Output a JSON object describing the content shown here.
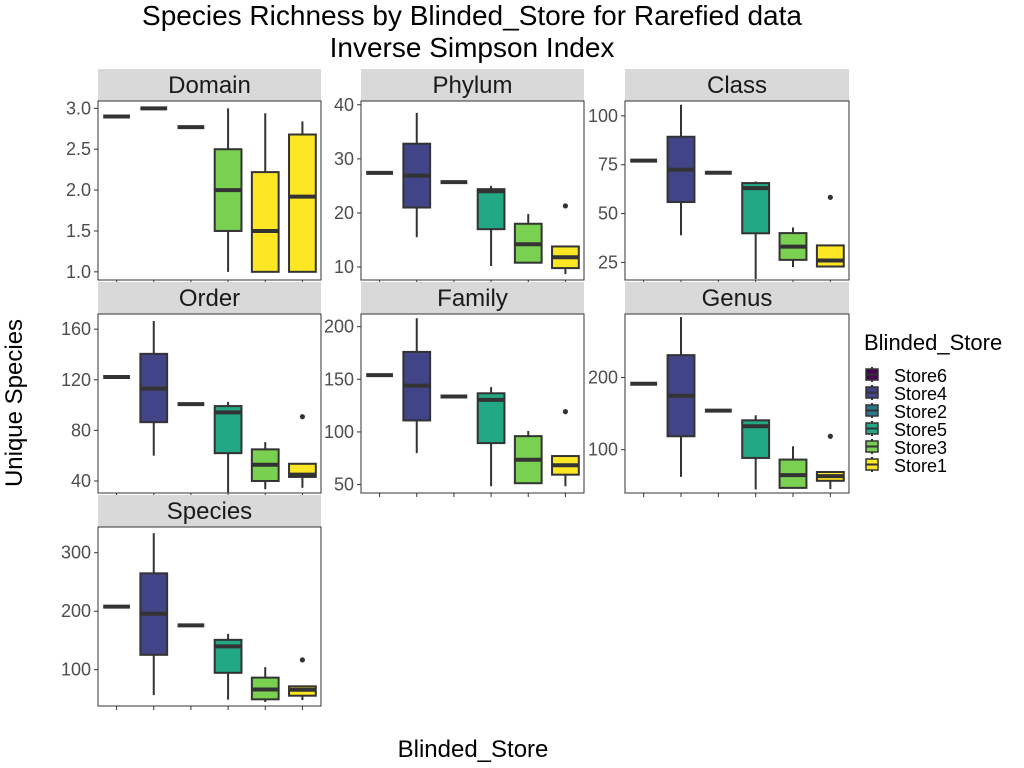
{
  "chart_data": {
    "type": "boxplot",
    "title": "Species Richness by Blinded_Store for Rarefied data",
    "subtitle": "Inverse Simpson Index",
    "xlabel": "Blinded_Store",
    "ylabel": "Unique Species",
    "legend_title": "Blinded_Store",
    "legend_position": "right",
    "grid": false,
    "categories": [
      "Store6",
      "Store4",
      "Store2",
      "Store5",
      "Store3",
      "Store1"
    ],
    "colors": {
      "Store6": "#440154",
      "Store4": "#414487",
      "Store2": "#2A788E",
      "Store5": "#22A884",
      "Store3": "#7AD151",
      "Store1": "#FDE725"
    },
    "facets": [
      {
        "label": "Domain",
        "ylim": [
          0.9,
          3.09
        ],
        "yticks": [
          1.0,
          1.5,
          2.0,
          2.5,
          3.0
        ],
        "ytick_labels": [
          "1.0",
          "1.5",
          "2.0",
          "2.5",
          "3.0"
        ],
        "boxes": [
          {
            "store": "Store4",
            "min": 2.9,
            "q1": 2.9,
            "median": 2.9,
            "q3": 2.9,
            "max": 2.9,
            "outliers": []
          },
          {
            "store": "Store2",
            "min": 3.0,
            "q1": 3.0,
            "median": 3.0,
            "q3": 3.0,
            "max": 3.0,
            "outliers": []
          },
          {
            "store": "Store5",
            "min": 2.77,
            "q1": 2.77,
            "median": 2.77,
            "q3": 2.77,
            "max": 2.77,
            "outliers": []
          },
          {
            "store": "Store3",
            "min": 1.0,
            "q1": 1.5,
            "median": 2.0,
            "q3": 2.5,
            "max": 3.0,
            "outliers": []
          },
          {
            "store": "Store1",
            "min": 1.0,
            "q1": 1.0,
            "median": 1.5,
            "q3": 2.22,
            "max": 2.94,
            "outliers": []
          },
          {
            "store": "Store1",
            "min": 1.0,
            "q1": 1.0,
            "median": 1.92,
            "q3": 2.68,
            "max": 2.84,
            "outliers": []
          }
        ]
      },
      {
        "label": "Phylum",
        "ylim": [
          7.6,
          40.7
        ],
        "yticks": [
          10,
          20,
          30,
          40
        ],
        "ytick_labels": [
          "10",
          "20",
          "30",
          "40"
        ],
        "boxes": [
          {
            "store": "Store4",
            "min": 27.4,
            "q1": 27.4,
            "median": 27.4,
            "q3": 27.4,
            "max": 27.4,
            "outliers": []
          },
          {
            "store": "Store4",
            "min": 15.5,
            "q1": 21.0,
            "median": 26.9,
            "q3": 32.8,
            "max": 38.5,
            "outliers": []
          },
          {
            "store": "Store5",
            "min": 25.7,
            "q1": 25.7,
            "median": 25.7,
            "q3": 25.7,
            "max": 25.7,
            "outliers": []
          },
          {
            "store": "Store5",
            "min": 10.2,
            "q1": 17.0,
            "median": 24.0,
            "q3": 24.4,
            "max": 25.0,
            "outliers": []
          },
          {
            "store": "Store3",
            "min": 10.8,
            "q1": 10.8,
            "median": 14.2,
            "q3": 18.0,
            "max": 19.8,
            "outliers": []
          },
          {
            "store": "Store1",
            "min": 8.7,
            "q1": 9.8,
            "median": 11.8,
            "q3": 13.8,
            "max": 13.8,
            "outliers": [
              21.3
            ]
          }
        ]
      },
      {
        "label": "Class",
        "ylim": [
          16,
          107.6
        ],
        "yticks": [
          25,
          50,
          75,
          100
        ],
        "ytick_labels": [
          "25",
          "50",
          "75",
          "100"
        ],
        "boxes": [
          {
            "store": "Store3",
            "min": 77.1,
            "q1": 77.1,
            "median": 77.1,
            "q3": 77.1,
            "max": 77.1,
            "outliers": []
          },
          {
            "store": "Store4",
            "min": 38.9,
            "q1": 55.9,
            "median": 72.5,
            "q3": 89.3,
            "max": 105.7,
            "outliers": []
          },
          {
            "store": "Store5",
            "min": 70.9,
            "q1": 70.9,
            "median": 70.9,
            "q3": 70.9,
            "max": 70.9,
            "outliers": []
          },
          {
            "store": "Store5",
            "min": 16.5,
            "q1": 39.9,
            "median": 63.0,
            "q3": 65.6,
            "max": 66.4,
            "outliers": []
          },
          {
            "store": "Store3",
            "min": 22.6,
            "q1": 26.3,
            "median": 33.1,
            "q3": 40.0,
            "max": 42.9,
            "outliers": []
          },
          {
            "store": "Store1",
            "min": 22.6,
            "q1": 22.9,
            "median": 26.0,
            "q3": 33.7,
            "max": 33.7,
            "outliers": [
              58.3
            ]
          }
        ]
      },
      {
        "label": "Order",
        "ylim": [
          30.5,
          172
        ],
        "yticks": [
          40,
          80,
          120,
          160
        ],
        "ytick_labels": [
          "40",
          "80",
          "120",
          "160"
        ],
        "boxes": [
          {
            "store": "Store2",
            "min": 122.2,
            "q1": 122.2,
            "median": 122.2,
            "q3": 122.2,
            "max": 122.2,
            "outliers": []
          },
          {
            "store": "Store4",
            "min": 60.0,
            "q1": 86.5,
            "median": 113.0,
            "q3": 140.5,
            "max": 166.5,
            "outliers": []
          },
          {
            "store": "Store2",
            "min": 100.8,
            "q1": 100.8,
            "median": 100.8,
            "q3": 100.8,
            "max": 100.8,
            "outliers": []
          },
          {
            "store": "Store5",
            "min": 31.0,
            "q1": 62.0,
            "median": 94.2,
            "q3": 99.2,
            "max": 102.5,
            "outliers": []
          },
          {
            "store": "Store3",
            "min": 33.5,
            "q1": 40.0,
            "median": 52.8,
            "q3": 65.0,
            "max": 70.7,
            "outliers": []
          },
          {
            "store": "Store1",
            "min": 34.6,
            "q1": 43.2,
            "median": 45.0,
            "q3": 53.6,
            "max": 53.6,
            "outliers": [
              90.8
            ]
          }
        ]
      },
      {
        "label": "Family",
        "ylim": [
          42,
          212
        ],
        "yticks": [
          50,
          100,
          150,
          200
        ],
        "ytick_labels": [
          "50",
          "100",
          "150",
          "200"
        ],
        "boxes": [
          {
            "store": "Store2",
            "min": 153.9,
            "q1": 153.9,
            "median": 153.9,
            "q3": 153.9,
            "max": 153.9,
            "outliers": []
          },
          {
            "store": "Store4",
            "min": 79.9,
            "q1": 110.9,
            "median": 144.0,
            "q3": 176.0,
            "max": 208.0,
            "outliers": []
          },
          {
            "store": "Store2",
            "min": 133.7,
            "q1": 133.7,
            "median": 133.7,
            "q3": 133.7,
            "max": 133.7,
            "outliers": []
          },
          {
            "store": "Store5",
            "min": 48.4,
            "q1": 89.4,
            "median": 130.4,
            "q3": 136.7,
            "max": 142.5,
            "outliers": []
          },
          {
            "store": "Store3",
            "min": 51.3,
            "q1": 51.3,
            "median": 73.6,
            "q3": 96.0,
            "max": 100.9,
            "outliers": []
          },
          {
            "store": "Store1",
            "min": 48.4,
            "q1": 59.4,
            "median": 68.3,
            "q3": 77.1,
            "max": 77.1,
            "outliers": [
              119.3
            ]
          }
        ]
      },
      {
        "label": "Genus",
        "ylim": [
          40,
          288
        ],
        "yticks": [
          100,
          200
        ],
        "ytick_labels": [
          "100",
          "200"
        ],
        "boxes": [
          {
            "store": "Store2",
            "min": 191.4,
            "q1": 191.4,
            "median": 191.4,
            "q3": 191.4,
            "max": 191.4,
            "outliers": []
          },
          {
            "store": "Store4",
            "min": 62.3,
            "q1": 118.6,
            "median": 174.7,
            "q3": 231.0,
            "max": 283.6,
            "outliers": []
          },
          {
            "store": "Store2",
            "min": 154.2,
            "q1": 154.2,
            "median": 154.2,
            "q3": 154.2,
            "max": 154.2,
            "outliers": []
          },
          {
            "store": "Store5",
            "min": 44.8,
            "q1": 88.6,
            "median": 132.5,
            "q3": 140.7,
            "max": 147.7,
            "outliers": []
          },
          {
            "store": "Store3",
            "min": 47.1,
            "q1": 47.1,
            "median": 64.7,
            "q3": 86.3,
            "max": 104.7,
            "outliers": []
          },
          {
            "store": "Store1",
            "min": 45.4,
            "q1": 56.9,
            "median": 63.3,
            "q3": 69.1,
            "max": 69.1,
            "outliers": [
              118.6
            ]
          }
        ]
      },
      {
        "label": "Species",
        "ylim": [
          38,
          344
        ],
        "yticks": [
          100,
          200,
          300
        ],
        "ytick_labels": [
          "100",
          "200",
          "300"
        ],
        "boxes": [
          {
            "store": "Store2",
            "min": 207.9,
            "q1": 207.9,
            "median": 207.9,
            "q3": 207.9,
            "max": 207.9,
            "outliers": []
          },
          {
            "store": "Store4",
            "min": 56.6,
            "q1": 125.5,
            "median": 195.6,
            "q3": 264.8,
            "max": 333.6,
            "outliers": []
          },
          {
            "store": "Store2",
            "min": 175.9,
            "q1": 175.9,
            "median": 175.9,
            "q3": 175.9,
            "max": 175.9,
            "outliers": []
          },
          {
            "store": "Store5",
            "min": 48.8,
            "q1": 94.7,
            "median": 140.0,
            "q3": 151.1,
            "max": 161.3,
            "outliers": []
          },
          {
            "store": "Store3",
            "min": 44.9,
            "q1": 49.4,
            "median": 66.3,
            "q3": 86.5,
            "max": 104.4,
            "outliers": []
          },
          {
            "store": "Store1",
            "min": 48.2,
            "q1": 55.6,
            "median": 65.8,
            "q3": 71.6,
            "max": 71.6,
            "outliers": [
              116.8
            ]
          }
        ]
      }
    ]
  }
}
